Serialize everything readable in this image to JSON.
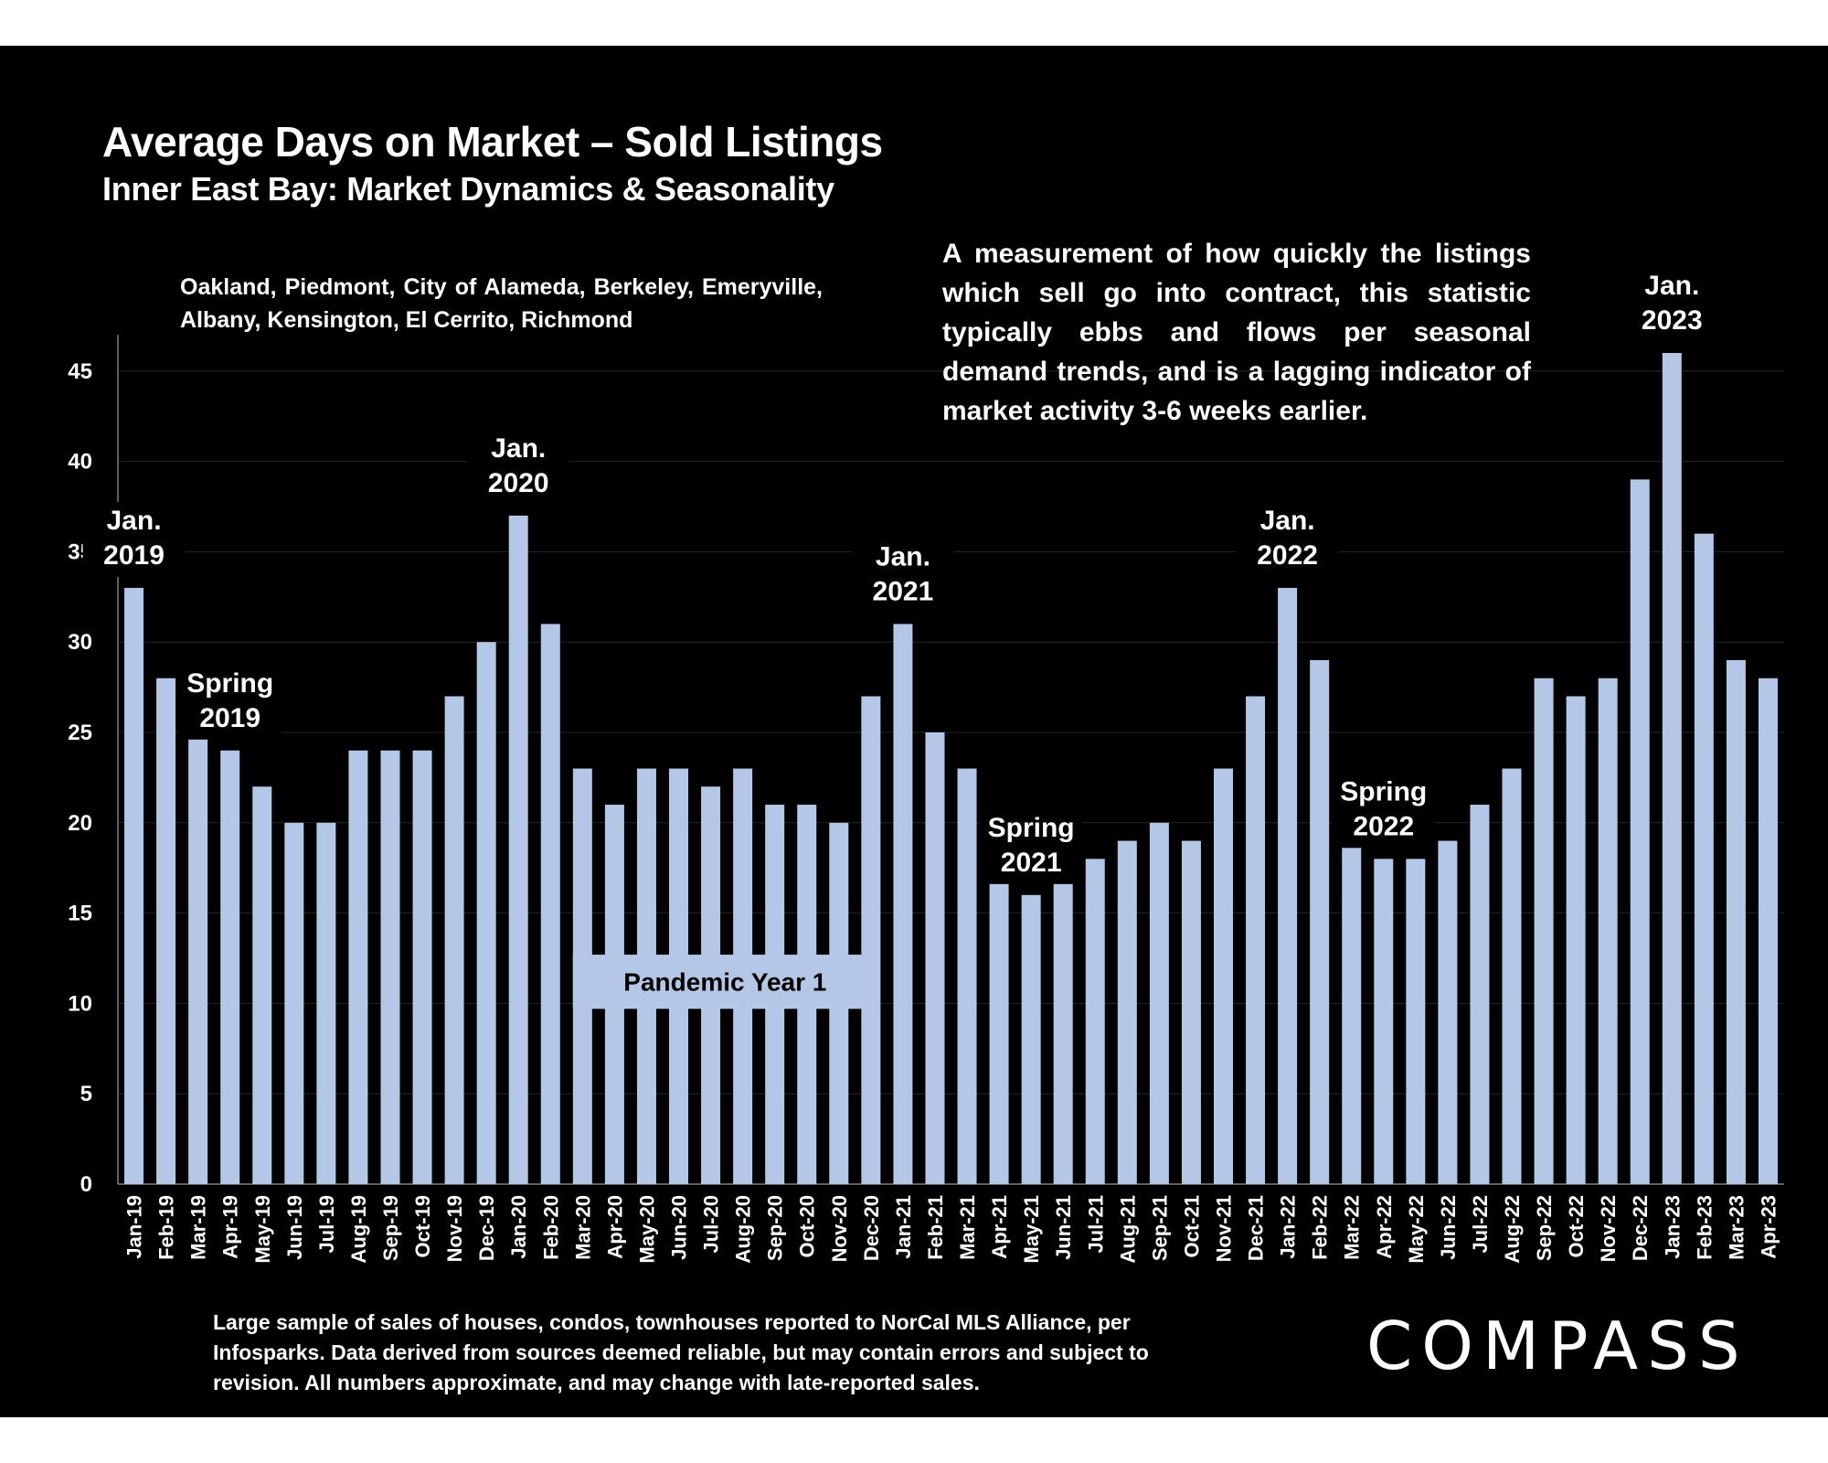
{
  "colors": {
    "background": "#000000",
    "bar": "#b4c7e7",
    "text": "#ffffff",
    "grid": "#262626"
  },
  "header": {
    "title": "Average Days on Market – Sold Listings",
    "subtitle": "Inner East Bay: Market Dynamics & Seasonality"
  },
  "notes": {
    "region": "Oakland, Piedmont, City of Alameda, Berkeley, Emeryville, Albany, Kensington, El Cerrito, Richmond",
    "description": "A measurement of how quickly the listings which sell go into contract, this statistic typically ebbs and flows per seasonal demand trends, and is a lagging indicator of market activity 3-6 weeks earlier.",
    "source": "Large sample of sales of houses, condos, townhouses reported to NorCal MLS Alliance, per Infosparks. Data derived from sources deemed reliable, but may contain errors and subject to revision. All numbers approximate, and may change with late-reported sales."
  },
  "logo": {
    "text": "COMPASS"
  },
  "chart_data": {
    "type": "bar",
    "title": "Average Days on Market – Sold Listings",
    "subtitle": "Inner East Bay: Market Dynamics & Seasonality",
    "xlabel": "",
    "ylabel": "",
    "ylim": [
      0,
      47
    ],
    "yticks": [
      0,
      5,
      10,
      15,
      20,
      25,
      30,
      35,
      40,
      45
    ],
    "grid": true,
    "categories": [
      "Jan-19",
      "Feb-19",
      "Mar-19",
      "Apr-19",
      "May-19",
      "Jun-19",
      "Jul-19",
      "Aug-19",
      "Sep-19",
      "Oct-19",
      "Nov-19",
      "Dec-19",
      "Jan-20",
      "Feb-20",
      "Mar-20",
      "Apr-20",
      "May-20",
      "Jun-20",
      "Jul-20",
      "Aug-20",
      "Sep-20",
      "Oct-20",
      "Nov-20",
      "Dec-20",
      "Jan-21",
      "Feb-21",
      "Mar-21",
      "Apr-21",
      "May-21",
      "Jun-21",
      "Jul-21",
      "Aug-21",
      "Sep-21",
      "Oct-21",
      "Nov-21",
      "Dec-21",
      "Jan-22",
      "Feb-22",
      "Mar-22",
      "Apr-22",
      "May-22",
      "Jun-22",
      "Jul-22",
      "Aug-22",
      "Sep-22",
      "Oct-22",
      "Nov-22",
      "Dec-22",
      "Jan-23",
      "Feb-23",
      "Mar-23",
      "Apr-23"
    ],
    "values": [
      33,
      28,
      28,
      24,
      22,
      20,
      20,
      24,
      24,
      24,
      27,
      30,
      37,
      31,
      23,
      21,
      23,
      23,
      22,
      23,
      21,
      21,
      20,
      27,
      31,
      25,
      23,
      18,
      16,
      17,
      18,
      19,
      20,
      19,
      23,
      27,
      33,
      29,
      20,
      18,
      18,
      19,
      21,
      23,
      28,
      27,
      28,
      39,
      46,
      36,
      29,
      28
    ],
    "annotations": [
      {
        "category": "Jan-19",
        "lines": [
          "Jan.",
          "2019"
        ],
        "value": 33
      },
      {
        "category": "Apr-19",
        "lines": [
          "Spring",
          "2019"
        ],
        "value": 24
      },
      {
        "category": "Jan-20",
        "lines": [
          "Jan.",
          "2020"
        ],
        "value": 37
      },
      {
        "category": "Jan-21",
        "lines": [
          "Jan.",
          "2021"
        ],
        "value": 31
      },
      {
        "category": "May-21",
        "lines": [
          "Spring",
          "2021"
        ],
        "value": 16
      },
      {
        "category": "Jan-22",
        "lines": [
          "Jan.",
          "2022"
        ],
        "value": 33
      },
      {
        "category": "Apr-22",
        "lines": [
          "Spring",
          "2022"
        ],
        "value": 18
      },
      {
        "category": "Jan-23",
        "lines": [
          "Jan.",
          "2023"
        ],
        "value": 46
      }
    ],
    "period_label": {
      "text": "Pandemic Year 1",
      "start": "Mar-20",
      "end": "Dec-20"
    }
  }
}
